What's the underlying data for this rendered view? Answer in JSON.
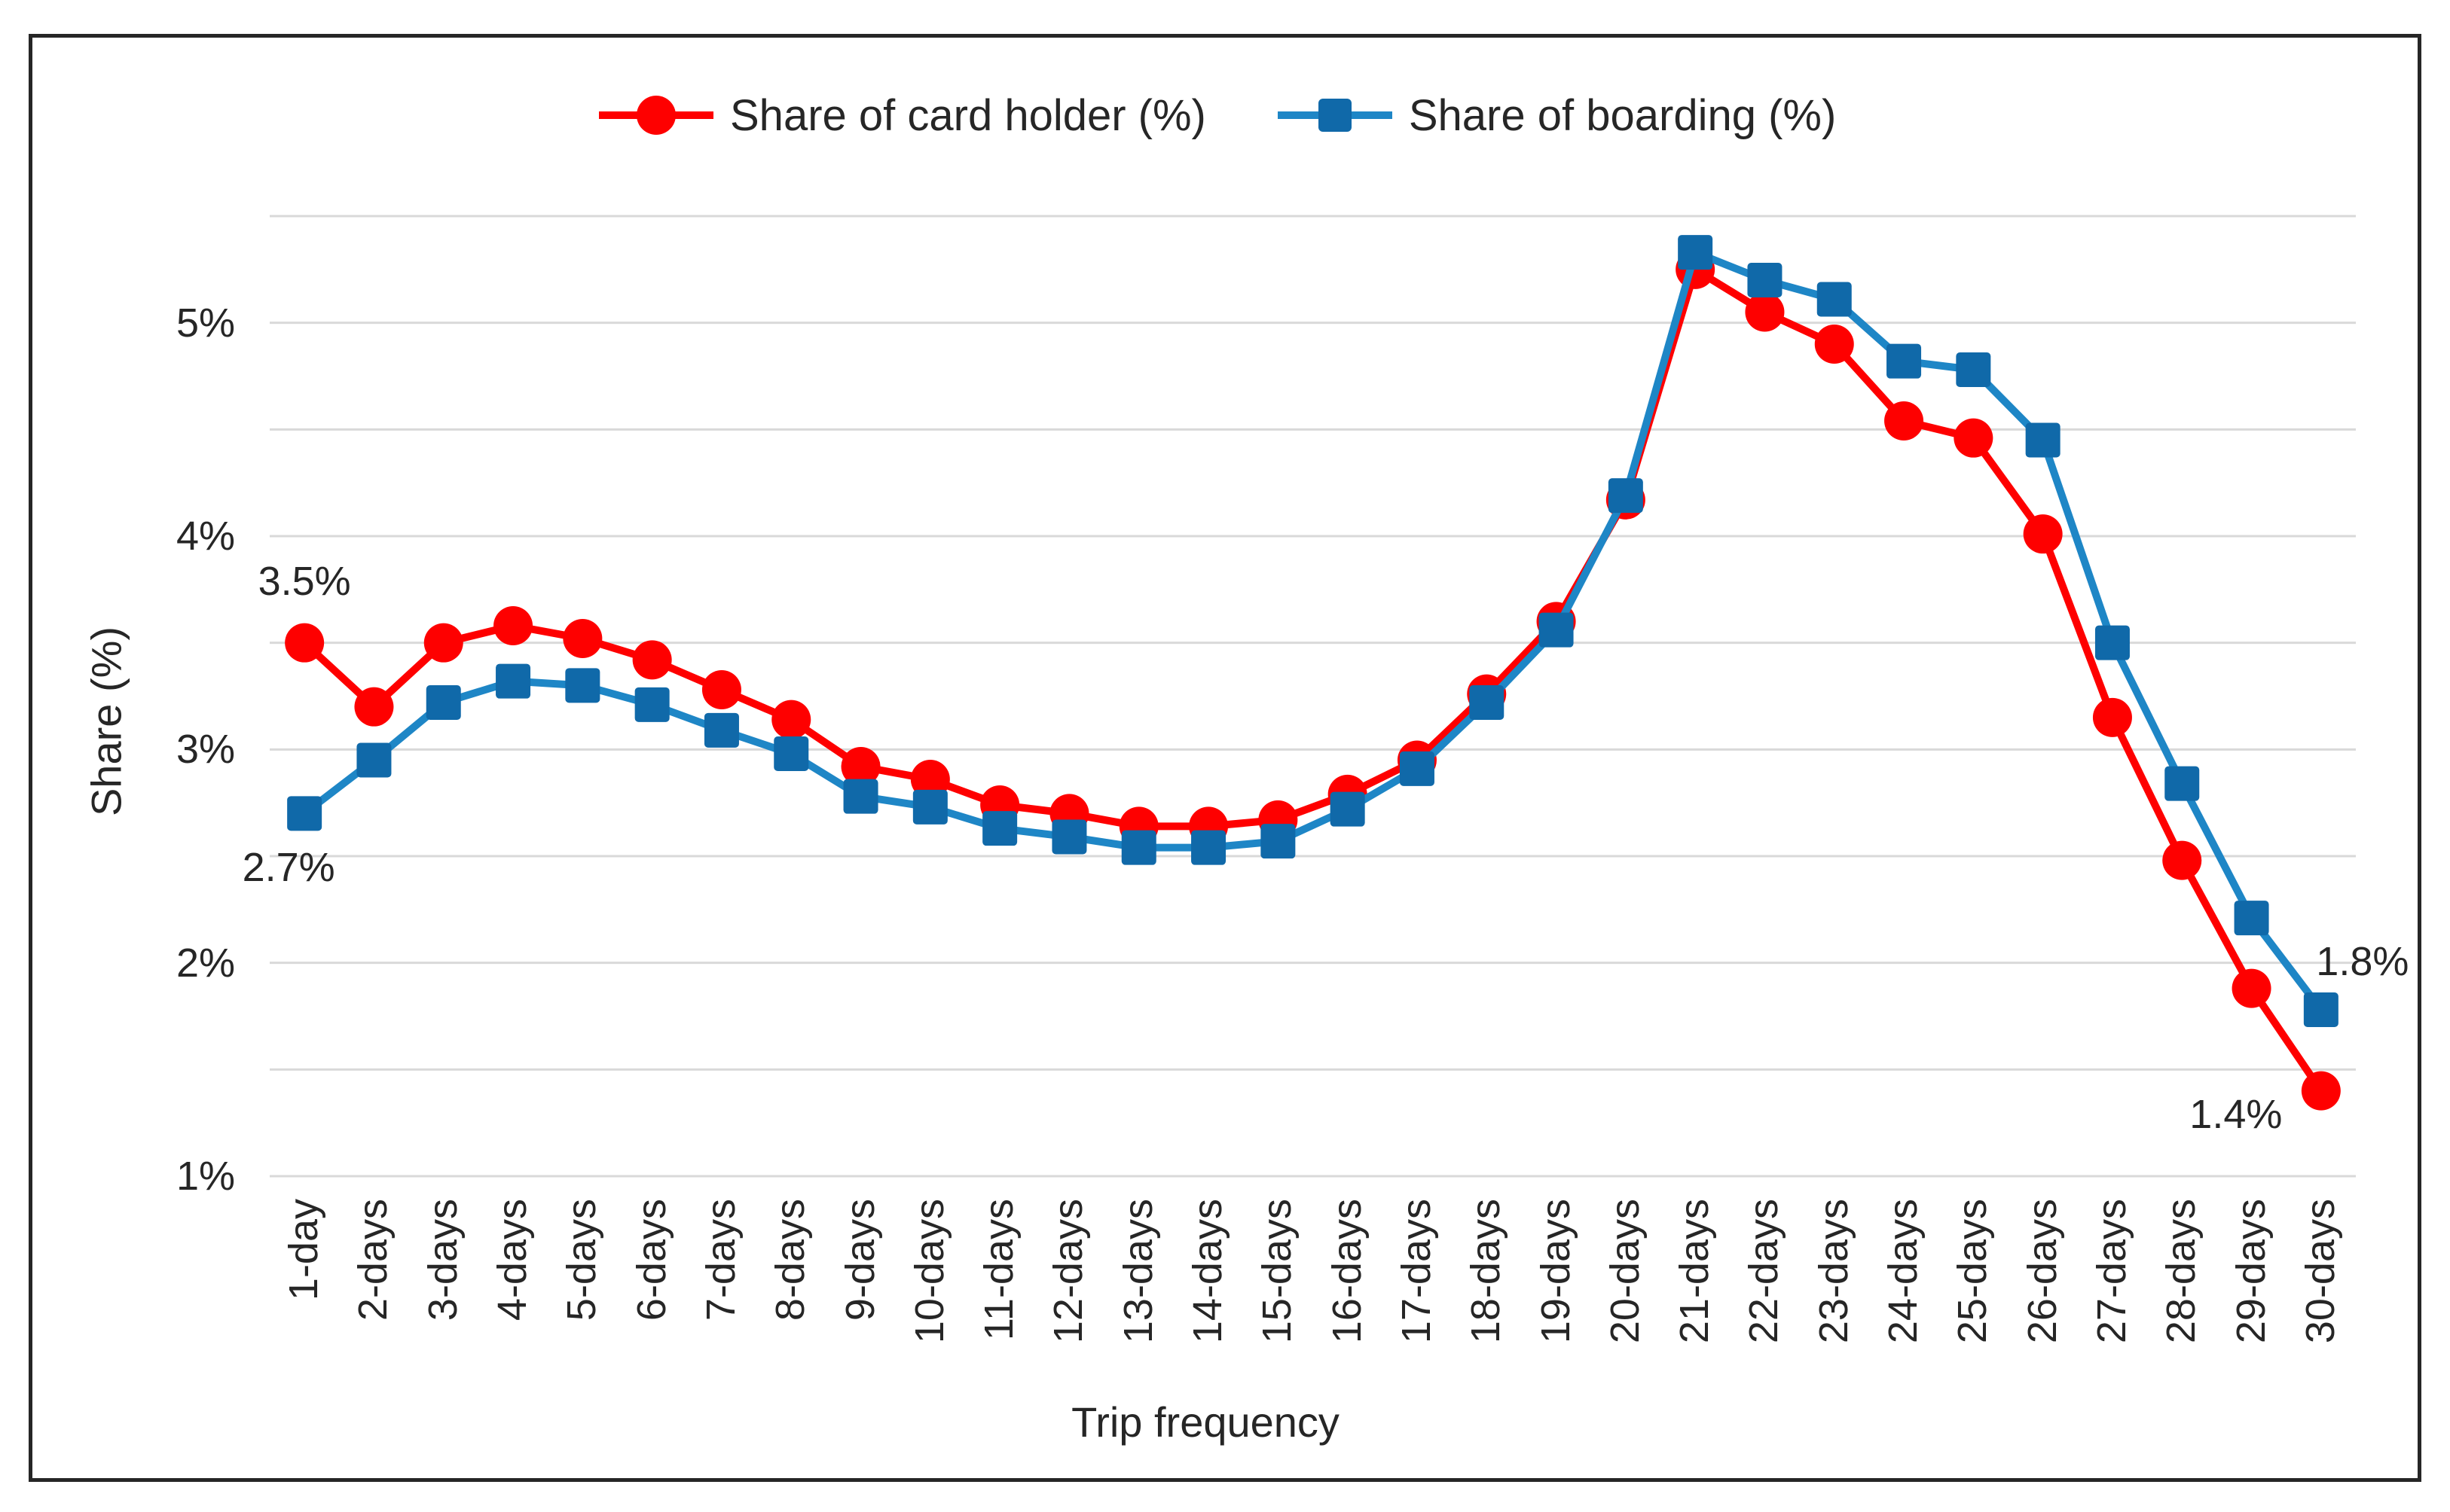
{
  "chart_data": {
    "type": "line",
    "xlabel": "Trip frequency",
    "ylabel": "Share (%)",
    "ylim": [
      1.0,
      5.5
    ],
    "gridline_step": 0.5,
    "grid": "horizontal-only",
    "ytick_labels": [
      "1%",
      "2%",
      "3%",
      "4%",
      "5%"
    ],
    "ytick_values": [
      1,
      2,
      3,
      4,
      5
    ],
    "legend_position": "top-center",
    "categories": [
      "1-day",
      "2-days",
      "3-days",
      "4-days",
      "5-days",
      "6-days",
      "7-days",
      "8-days",
      "9-days",
      "10-days",
      "11-days",
      "12-days",
      "13-days",
      "14-days",
      "15-days",
      "16-days",
      "17-days",
      "18-days",
      "19-days",
      "20-days",
      "21-days",
      "22-days",
      "23-days",
      "24-days",
      "25-days",
      "26-days",
      "27-days",
      "28-days",
      "29-days",
      "30-days"
    ],
    "series": [
      {
        "name": "Share of card holder (%)",
        "marker": "circle",
        "line_color": "#FE0000",
        "marker_color": "#FE0000",
        "values": [
          3.5,
          3.2,
          3.5,
          3.58,
          3.52,
          3.42,
          3.28,
          3.14,
          2.92,
          2.86,
          2.74,
          2.7,
          2.64,
          2.64,
          2.67,
          2.79,
          2.95,
          3.26,
          3.6,
          4.17,
          5.25,
          5.05,
          4.9,
          4.54,
          4.46,
          4.01,
          3.15,
          2.48,
          1.88,
          1.4
        ]
      },
      {
        "name": "Share of boarding (%)",
        "marker": "square",
        "line_color": "#1E86C6",
        "marker_color": "#1069A9",
        "values": [
          2.7,
          2.95,
          3.22,
          3.32,
          3.3,
          3.21,
          3.09,
          2.98,
          2.78,
          2.73,
          2.63,
          2.59,
          2.54,
          2.54,
          2.57,
          2.72,
          2.91,
          3.22,
          3.56,
          4.19,
          5.33,
          5.2,
          5.11,
          4.82,
          4.78,
          4.45,
          3.5,
          2.84,
          2.21,
          1.78
        ]
      }
    ],
    "annotations": [
      {
        "text": "3.5%",
        "series": 0,
        "index": 0
      },
      {
        "text": "2.7%",
        "series": 1,
        "index": 0
      },
      {
        "text": "1.8%",
        "series": 1,
        "index": 29
      },
      {
        "text": "1.4%",
        "series": 0,
        "index": 29
      }
    ],
    "gridline_color": "#D9D9D9",
    "text_color": "#262626",
    "border_color": "#262626"
  }
}
